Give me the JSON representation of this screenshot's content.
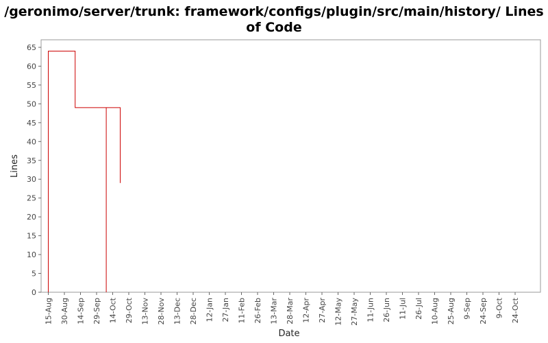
{
  "chart_data": {
    "type": "line",
    "title_line1": "/geronimo/server/trunk: framework/configs/plugin/src/main/history/ Lines",
    "title_line2": "of Code",
    "xlabel": "Date",
    "ylabel": "Lines",
    "ylim": [
      0,
      67
    ],
    "y_ticks": [
      0,
      5,
      10,
      15,
      20,
      25,
      30,
      35,
      40,
      45,
      50,
      55,
      60,
      65
    ],
    "x_tick_labels": [
      "15-Aug",
      "30-Aug",
      "14-Sep",
      "29-Sep",
      "14-Oct",
      "29-Oct",
      "13-Nov",
      "28-Nov",
      "13-Dec",
      "28-Dec",
      "12-Jan",
      "27-Jan",
      "11-Feb",
      "26-Feb",
      "13-Mar",
      "28-Mar",
      "12-Apr",
      "27-Apr",
      "12-May",
      "27-May",
      "11-Jun",
      "26-Jun",
      "11-Jul",
      "26-Jul",
      "10-Aug",
      "25-Aug",
      "9-Sep",
      "24-Sep",
      "9-Oct",
      "24-Oct"
    ],
    "grid": false,
    "series_color": "#cc0000",
    "series": [
      {
        "step": true,
        "points": [
          {
            "x": "15-Aug",
            "y": 0
          },
          {
            "x": "15-Aug",
            "y": 64
          },
          {
            "x": "9-Sep",
            "y": 64
          },
          {
            "x": "9-Sep",
            "y": 49
          },
          {
            "x": "8-Oct",
            "y": 49
          },
          {
            "x": "8-Oct",
            "y": 0
          },
          {
            "x": "8-Oct",
            "y": 49
          },
          {
            "x": "21-Oct",
            "y": 49
          },
          {
            "x": "21-Oct",
            "y": 29
          }
        ]
      }
    ]
  }
}
